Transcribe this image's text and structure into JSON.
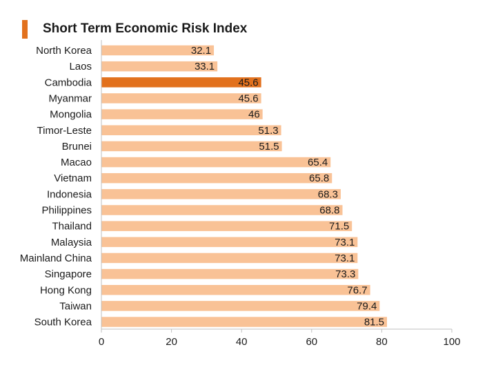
{
  "colors": {
    "accent": "#e2711d",
    "bar": "#f9c296",
    "highlight": "#e2711d",
    "axis": "#bfbfbf"
  },
  "chart_data": {
    "type": "bar",
    "orientation": "horizontal",
    "title": "Short Term Economic Risk Index",
    "categories": [
      "North Korea",
      "Laos",
      "Cambodia",
      "Myanmar",
      "Mongolia",
      "Timor-Leste",
      "Brunei",
      "Macao",
      "Vietnam",
      "Indonesia",
      "Philippines",
      "Thailand",
      "Malaysia",
      "Mainland China",
      "Singapore",
      "Hong Kong",
      "Taiwan",
      "South Korea"
    ],
    "values": [
      32.1,
      33.1,
      45.6,
      45.6,
      46,
      51.3,
      51.5,
      65.4,
      65.8,
      68.3,
      68.8,
      71.5,
      73.1,
      73.1,
      73.3,
      76.7,
      79.4,
      81.5
    ],
    "value_labels": [
      "32.1",
      "33.1",
      "45.6",
      "45.6",
      "46",
      "51.3",
      "51.5",
      "65.4",
      "65.8",
      "68.3",
      "68.8",
      "71.5",
      "73.1",
      "73.1",
      "73.3",
      "76.7",
      "79.4",
      "81.5"
    ],
    "highlighted_category": "Cambodia",
    "xlim": [
      0,
      100
    ],
    "xticks": [
      "0",
      "20",
      "40",
      "60",
      "80",
      "100"
    ],
    "grid": false,
    "legend": "none"
  }
}
